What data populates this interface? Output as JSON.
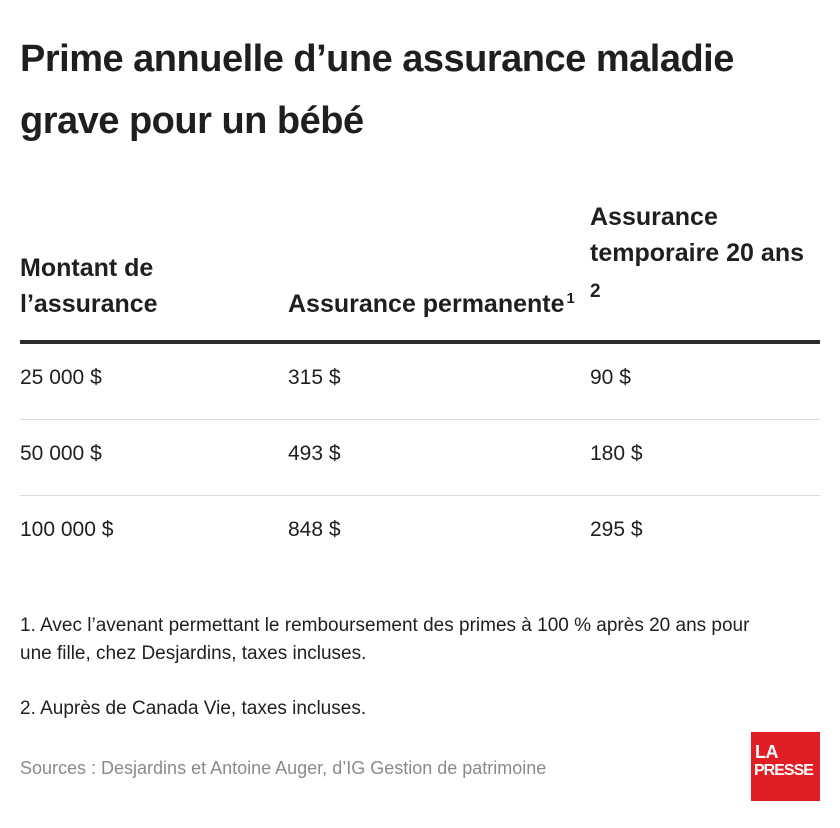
{
  "title": "Prime annuelle d’une assurance maladie grave pour un bébé",
  "chart_data": {
    "type": "table",
    "columns": [
      {
        "label": "Montant de l’assurance",
        "note": ""
      },
      {
        "label": "Assurance permanente",
        "note": "1"
      },
      {
        "label": "Assurance temporaire 20 ans",
        "note": "2"
      }
    ],
    "rows": [
      [
        "25 000 $",
        "315 $",
        "90 $"
      ],
      [
        "50 000 $",
        "493 $",
        "180 $"
      ],
      [
        "100 000 $",
        "848 $",
        "295 $"
      ]
    ]
  },
  "notes": [
    "1. Avec l’avenant permettant le remboursement des primes à 100 % après 20 ans pour une fille, chez Desjardins, taxes incluses.",
    "2. Auprès de Canada Vie, taxes incluses."
  ],
  "source": "Sources : Desjardins et Antoine Auger, d’IG Gestion de patrimoine",
  "logo": {
    "line1": "LA",
    "line2": "PRESSE",
    "color": "#e01e26"
  }
}
